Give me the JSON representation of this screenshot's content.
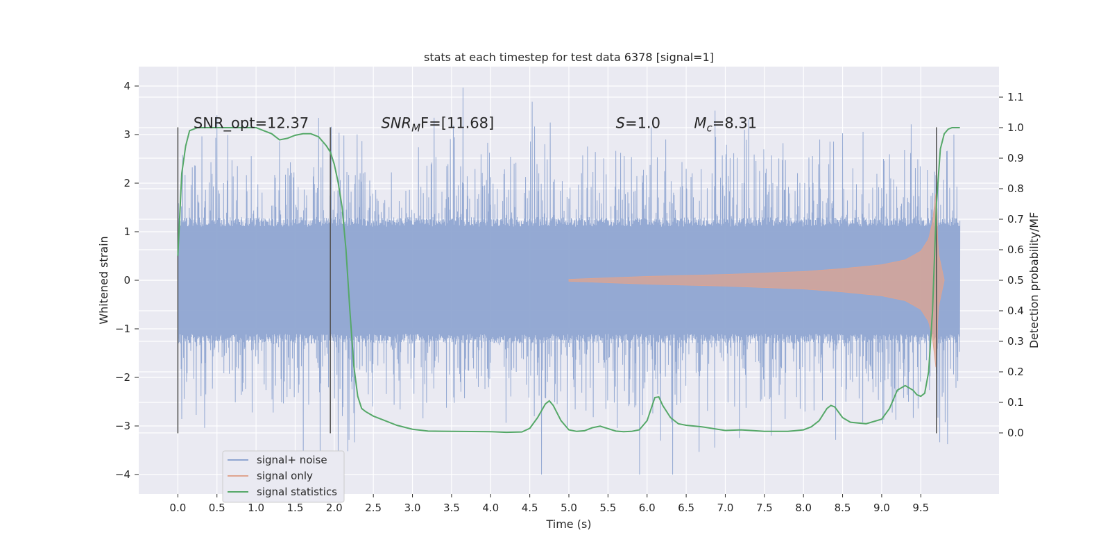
{
  "chart_data": {
    "type": "line",
    "title": "stats at each timestep for test data 6378 [signal=1]",
    "xlabel": "Time (s)",
    "ylabel_left": "Whitened strain",
    "ylabel_right": "Detection probability/MF",
    "xlim": [
      -0.5,
      10.5
    ],
    "ylim_left": [
      -4.4,
      4.4
    ],
    "ylim_right": [
      -0.2,
      1.2
    ],
    "x_ticks": [
      0.0,
      0.5,
      1.0,
      1.5,
      2.0,
      2.5,
      3.0,
      3.5,
      4.0,
      4.5,
      5.0,
      5.5,
      6.0,
      6.5,
      7.0,
      7.5,
      8.0,
      8.5,
      9.0,
      9.5
    ],
    "x_tick_labels": [
      "0.0",
      "0.5",
      "1.0",
      "1.5",
      "2.0",
      "2.5",
      "3.0",
      "3.5",
      "4.0",
      "4.5",
      "5.0",
      "5.5",
      "6.0",
      "6.5",
      "7.0",
      "7.5",
      "8.0",
      "8.5",
      "9.0",
      "9.5"
    ],
    "y_left_ticks": [
      -4,
      -3,
      -2,
      -1,
      0,
      1,
      2,
      3,
      4
    ],
    "y_left_tick_labels": [
      "−4",
      "−3",
      "−2",
      "−1",
      "0",
      "1",
      "2",
      "3",
      "4"
    ],
    "y_right_ticks": [
      0.0,
      0.1,
      0.2,
      0.3,
      0.4,
      0.5,
      0.6,
      0.7,
      0.8,
      0.9,
      1.0,
      1.1
    ],
    "y_right_tick_labels": [
      "0.0",
      "0.1",
      "0.2",
      "0.3",
      "0.4",
      "0.5",
      "0.6",
      "0.7",
      "0.8",
      "0.9",
      "1.0",
      "1.1"
    ],
    "grid": true,
    "legend_position": "lower-left",
    "series": [
      {
        "name": "signal+ noise",
        "color": "#8fa5d1",
        "axis": "left",
        "x_range": [
          0.0,
          10.0
        ],
        "envelope": {
          "typical_abs": 1.3,
          "peak_max": 4.05,
          "peak_min": -4.0
        }
      },
      {
        "name": "signal only",
        "color": "#dfa48f",
        "axis": "left",
        "x": [
          5.0,
          6.0,
          7.0,
          8.0,
          8.5,
          9.0,
          9.3,
          9.5,
          9.6,
          9.65,
          9.7,
          9.72,
          9.8
        ],
        "amplitude": [
          0.02,
          0.08,
          0.12,
          0.18,
          0.24,
          0.32,
          0.42,
          0.6,
          0.85,
          1.2,
          1.9,
          0.6,
          0.0
        ]
      },
      {
        "name": "signal statistics",
        "color": "#55a868",
        "axis": "right",
        "x": [
          0.0,
          0.05,
          0.1,
          0.15,
          0.25,
          0.4,
          0.6,
          0.8,
          1.0,
          1.1,
          1.2,
          1.3,
          1.4,
          1.5,
          1.6,
          1.7,
          1.8,
          1.9,
          1.95,
          2.0,
          2.05,
          2.1,
          2.15,
          2.2,
          2.25,
          2.3,
          2.35,
          2.4,
          2.5,
          2.6,
          2.8,
          3.0,
          3.2,
          3.5,
          4.0,
          4.2,
          4.4,
          4.5,
          4.6,
          4.7,
          4.75,
          4.8,
          4.9,
          5.0,
          5.1,
          5.2,
          5.3,
          5.4,
          5.5,
          5.6,
          5.7,
          5.8,
          5.9,
          6.0,
          6.1,
          6.15,
          6.2,
          6.3,
          6.4,
          6.5,
          6.7,
          7.0,
          7.2,
          7.5,
          7.8,
          8.0,
          8.1,
          8.2,
          8.3,
          8.35,
          8.4,
          8.5,
          8.6,
          8.8,
          9.0,
          9.1,
          9.2,
          9.3,
          9.4,
          9.45,
          9.5,
          9.55,
          9.6,
          9.65,
          9.7,
          9.75,
          9.8,
          9.85,
          9.9,
          10.0
        ],
        "y": [
          0.58,
          0.85,
          0.94,
          0.99,
          1.0,
          1.0,
          1.0,
          1.0,
          1.0,
          0.99,
          0.98,
          0.96,
          0.965,
          0.975,
          0.98,
          0.98,
          0.97,
          0.94,
          0.92,
          0.88,
          0.82,
          0.74,
          0.6,
          0.4,
          0.22,
          0.12,
          0.08,
          0.07,
          0.055,
          0.045,
          0.025,
          0.012,
          0.006,
          0.005,
          0.004,
          0.002,
          0.003,
          0.015,
          0.05,
          0.095,
          0.105,
          0.09,
          0.04,
          0.01,
          0.005,
          0.007,
          0.017,
          0.022,
          0.014,
          0.006,
          0.004,
          0.005,
          0.01,
          0.04,
          0.116,
          0.118,
          0.09,
          0.05,
          0.03,
          0.025,
          0.02,
          0.008,
          0.01,
          0.005,
          0.005,
          0.01,
          0.02,
          0.04,
          0.08,
          0.09,
          0.085,
          0.05,
          0.035,
          0.03,
          0.045,
          0.08,
          0.14,
          0.155,
          0.14,
          0.125,
          0.12,
          0.13,
          0.2,
          0.4,
          0.75,
          0.93,
          0.98,
          0.995,
          1.0,
          1.0
        ]
      }
    ],
    "vertical_lines": [
      0.0,
      1.95,
      9.7
    ],
    "vertical_line_range": [
      -3.15,
      3.15
    ],
    "annotations": [
      {
        "text": "SNR_opt=12.37",
        "x": 0.2,
        "y": 3.25
      },
      {
        "text": "SNR",
        "sub": "M",
        "rest": "F=[11.68]",
        "x": 2.6,
        "y": 3.25
      },
      {
        "text": "S",
        "rest": "=1.0",
        "x": 5.6,
        "y": 3.25
      },
      {
        "text": "M",
        "sub": "c",
        "rest": "=8.31",
        "x": 6.6,
        "y": 3.25
      }
    ],
    "legend": [
      "signal+ noise",
      "signal only",
      "signal statistics"
    ]
  }
}
